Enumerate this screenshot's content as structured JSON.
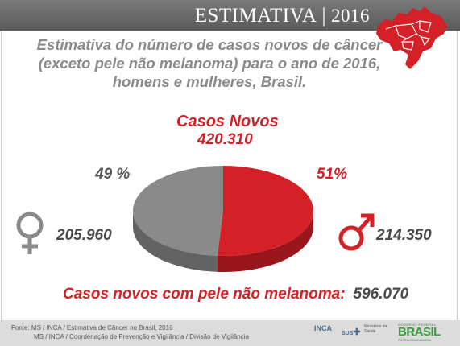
{
  "header": {
    "title": "ESTIMATIVA",
    "separator": "|",
    "year": "2016"
  },
  "subtitle": {
    "line1": "Estimativa do número de casos novos de câncer",
    "line2": "(exceto pele não melanoma) para o ano de 2016,",
    "line3": "homens e mulheres, Brasil."
  },
  "chart_data": {
    "type": "pie",
    "title": "Casos Novos",
    "total": "420.310",
    "slices": [
      {
        "name": "Mulheres",
        "value": 205960,
        "value_label": "205.960",
        "percent": 49,
        "percent_label": "49 %",
        "color": "#8a8a8a"
      },
      {
        "name": "Homens",
        "value": 214350,
        "value_label": "214.350",
        "percent": 51,
        "percent_label": "51%",
        "color": "#d42027"
      }
    ]
  },
  "icons": {
    "female": "female-symbol-icon",
    "male": "male-symbol-icon",
    "map": "brazil-map-icon"
  },
  "footnote": {
    "label": "Casos novos com pele não melanoma:",
    "value": "596.070"
  },
  "footer": {
    "line1": "Fonte: MS / INCA / Estimativa de Câncer no Brasil, 2016",
    "line2": "MS / INCA / Coordenação de Prevenção e Vigilância / Divisão de Vigilância",
    "logo_inca": "INCA",
    "logo_sus": "SUS",
    "logo_ministerio": "Ministério da Saúde",
    "logo_brasil_top": "GOVERNO FEDERAL",
    "logo_brasil": "BRASIL",
    "logo_brasil_bottom": "PÁTRIA EDUCADORA"
  },
  "colors": {
    "accent": "#d42027",
    "gray": "#8a8a8a",
    "banner": "#6a6a6a"
  }
}
